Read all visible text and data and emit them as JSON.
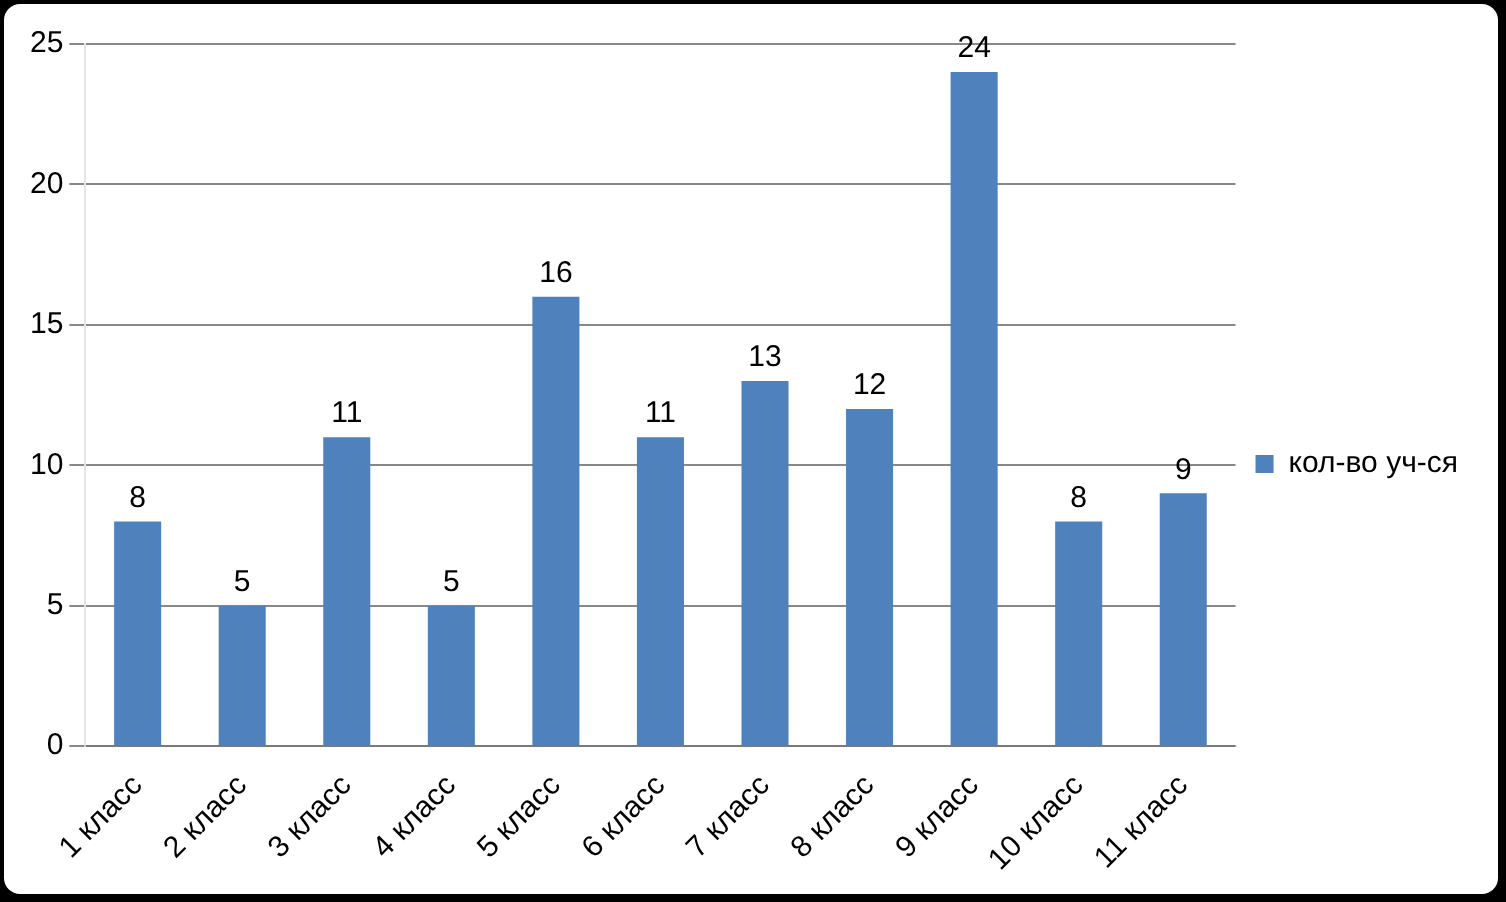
{
  "chart_data": {
    "type": "bar",
    "categories": [
      "1 класс",
      "2 класс",
      "3 класс",
      "4 класс",
      "5 класс",
      "6 класс",
      "7 класс",
      "8 класс",
      "9 класс",
      "10 класс",
      "11 класс"
    ],
    "series": [
      {
        "name": "кол-во уч-ся",
        "color": "#4f81bd",
        "values": [
          8,
          5,
          11,
          5,
          16,
          11,
          13,
          12,
          24,
          8,
          9
        ]
      }
    ],
    "ylim": [
      0,
      25
    ],
    "yticks": [
      0,
      5,
      10,
      15,
      20,
      25
    ],
    "grid": "y",
    "legend": "right",
    "data_labels": true
  }
}
